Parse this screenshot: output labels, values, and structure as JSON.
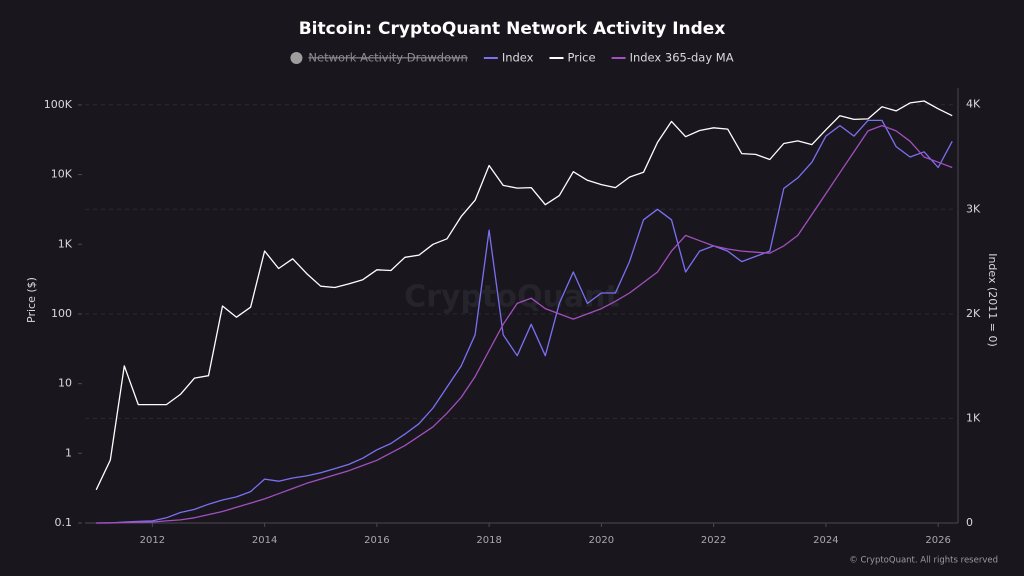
{
  "chart_data": {
    "type": "line",
    "title": "Bitcoin: CryptoQuant Network Activity Index",
    "ylabel": "Price ($)",
    "y2label": "Index (2011 = 0)",
    "watermark": "CryptoQuant",
    "footer": "© CryptoQuant. All rights reserved",
    "log_y": true,
    "grid": true,
    "legend": "top",
    "hidden_series": [
      {
        "name": "Network Activity Drawdown",
        "color": "#9e9e9e"
      }
    ],
    "xlim": [
      2010.8,
      2026.3
    ],
    "xticks": [
      2012,
      2014,
      2016,
      2018,
      2020,
      2022,
      2024,
      2026
    ],
    "ylim": [
      0.1,
      175000
    ],
    "yticks": [
      0.1,
      1,
      10,
      100,
      {
        "value": 1000,
        "label": "1K"
      },
      {
        "value": 10000,
        "label": "10K"
      },
      {
        "value": 100000,
        "label": "100K"
      }
    ],
    "y2lim": [
      0,
      4160
    ],
    "y2ticks": [
      0,
      {
        "value": 1000,
        "label": "1K"
      },
      {
        "value": 2000,
        "label": "2K"
      },
      {
        "value": 3000,
        "label": "3K"
      },
      {
        "value": 4000,
        "label": "4K"
      }
    ],
    "x": [
      2011,
      2011.25,
      2011.5,
      2011.75,
      2012,
      2012.25,
      2012.5,
      2012.75,
      2013,
      2013.25,
      2013.5,
      2013.75,
      2014,
      2014.25,
      2014.5,
      2014.75,
      2015,
      2015.25,
      2015.5,
      2015.75,
      2016,
      2016.25,
      2016.5,
      2016.75,
      2017,
      2017.25,
      2017.5,
      2017.75,
      2018,
      2018.25,
      2018.5,
      2018.75,
      2019,
      2019.25,
      2019.5,
      2019.75,
      2020,
      2020.25,
      2020.5,
      2020.75,
      2021,
      2021.25,
      2021.5,
      2021.75,
      2022,
      2022.25,
      2022.5,
      2022.75,
      2023,
      2023.25,
      2023.5,
      2023.75,
      2024,
      2024.25,
      2024.5,
      2024.75,
      2025,
      2025.25,
      2025.5,
      2025.75,
      2026,
      2026.25
    ],
    "series": [
      {
        "name": "Index",
        "color": "#7a70f2",
        "axis": "y2",
        "values": [
          0,
          0,
          10,
          15,
          20,
          50,
          100,
          130,
          180,
          220,
          250,
          300,
          420,
          400,
          430,
          450,
          480,
          520,
          560,
          620,
          700,
          760,
          850,
          950,
          1100,
          1300,
          1500,
          1800,
          2800,
          1800,
          1600,
          1900,
          1600,
          2100,
          2400,
          2100,
          2200,
          2200,
          2500,
          2900,
          3000,
          2900,
          2400,
          2600,
          2650,
          2600,
          2500,
          2550,
          2600,
          3200,
          3300,
          3450,
          3700,
          3800,
          3700,
          3850,
          3850,
          3600,
          3500,
          3550,
          3400,
          3650
        ]
      },
      {
        "name": "Price",
        "color": "#ffffff",
        "values": [
          0.3,
          0.8,
          18,
          5,
          5,
          5,
          7,
          12,
          13,
          130,
          90,
          125,
          800,
          450,
          620,
          380,
          250,
          240,
          270,
          310,
          430,
          420,
          650,
          700,
          1000,
          1200,
          2500,
          4300,
          13500,
          7000,
          6400,
          6500,
          3700,
          5000,
          11000,
          8300,
          7200,
          6500,
          9200,
          10800,
          29000,
          58000,
          35000,
          43000,
          47000,
          45000,
          20000,
          19500,
          16500,
          28000,
          30500,
          27000,
          44000,
          70000,
          62000,
          63000,
          94000,
          82000,
          107000,
          114000,
          88000,
          70000
        ]
      },
      {
        "name": "Index 365-day MA",
        "color": "#a24fbf",
        "axis": "y2",
        "values": [
          0,
          2,
          5,
          8,
          10,
          20,
          30,
          50,
          80,
          110,
          150,
          190,
          230,
          280,
          330,
          380,
          420,
          460,
          500,
          550,
          600,
          670,
          740,
          830,
          920,
          1050,
          1200,
          1400,
          1650,
          1900,
          2100,
          2150,
          2050,
          2000,
          1950,
          2000,
          2050,
          2120,
          2200,
          2300,
          2400,
          2600,
          2750,
          2700,
          2650,
          2620,
          2600,
          2590,
          2580,
          2650,
          2750,
          2950,
          3150,
          3350,
          3550,
          3750,
          3800,
          3750,
          3650,
          3500,
          3450,
          3400
        ]
      }
    ]
  }
}
